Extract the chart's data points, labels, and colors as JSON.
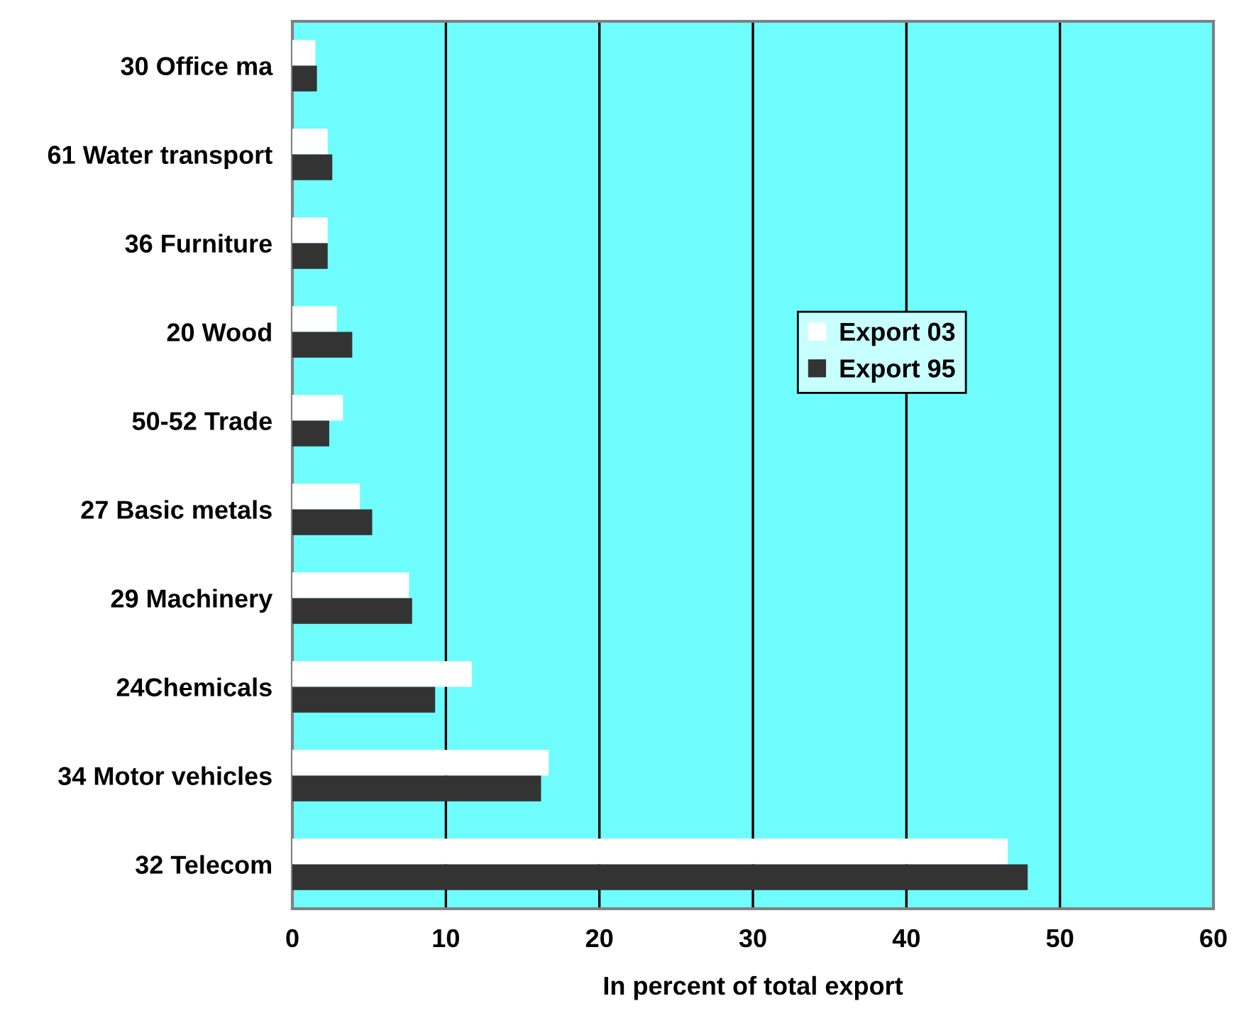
{
  "chart_data": {
    "type": "bar",
    "orientation": "horizontal",
    "xlabel": "In percent of total export",
    "categories": [
      "30 Office ma",
      "61 Water transport",
      "36 Furniture",
      "20 Wood",
      "50-52 Trade",
      "27 Basic metals",
      "29 Machinery",
      "24Chemicals",
      "34 Motor vehicles",
      "32 Telecom"
    ],
    "series": [
      {
        "name": "Export 03",
        "color": "#ffffff",
        "values": [
          1.5,
          2.3,
          2.3,
          2.9,
          3.3,
          4.4,
          7.6,
          11.7,
          16.7,
          46.6
        ]
      },
      {
        "name": "Export 95",
        "color": "#333333",
        "values": [
          1.6,
          2.6,
          2.3,
          3.9,
          2.4,
          5.2,
          7.8,
          9.3,
          16.2,
          47.9
        ]
      }
    ],
    "xlim": [
      0,
      60
    ],
    "xticks": [
      0,
      10,
      20,
      30,
      40,
      50,
      60
    ],
    "grid": "x",
    "legend": "center right"
  }
}
